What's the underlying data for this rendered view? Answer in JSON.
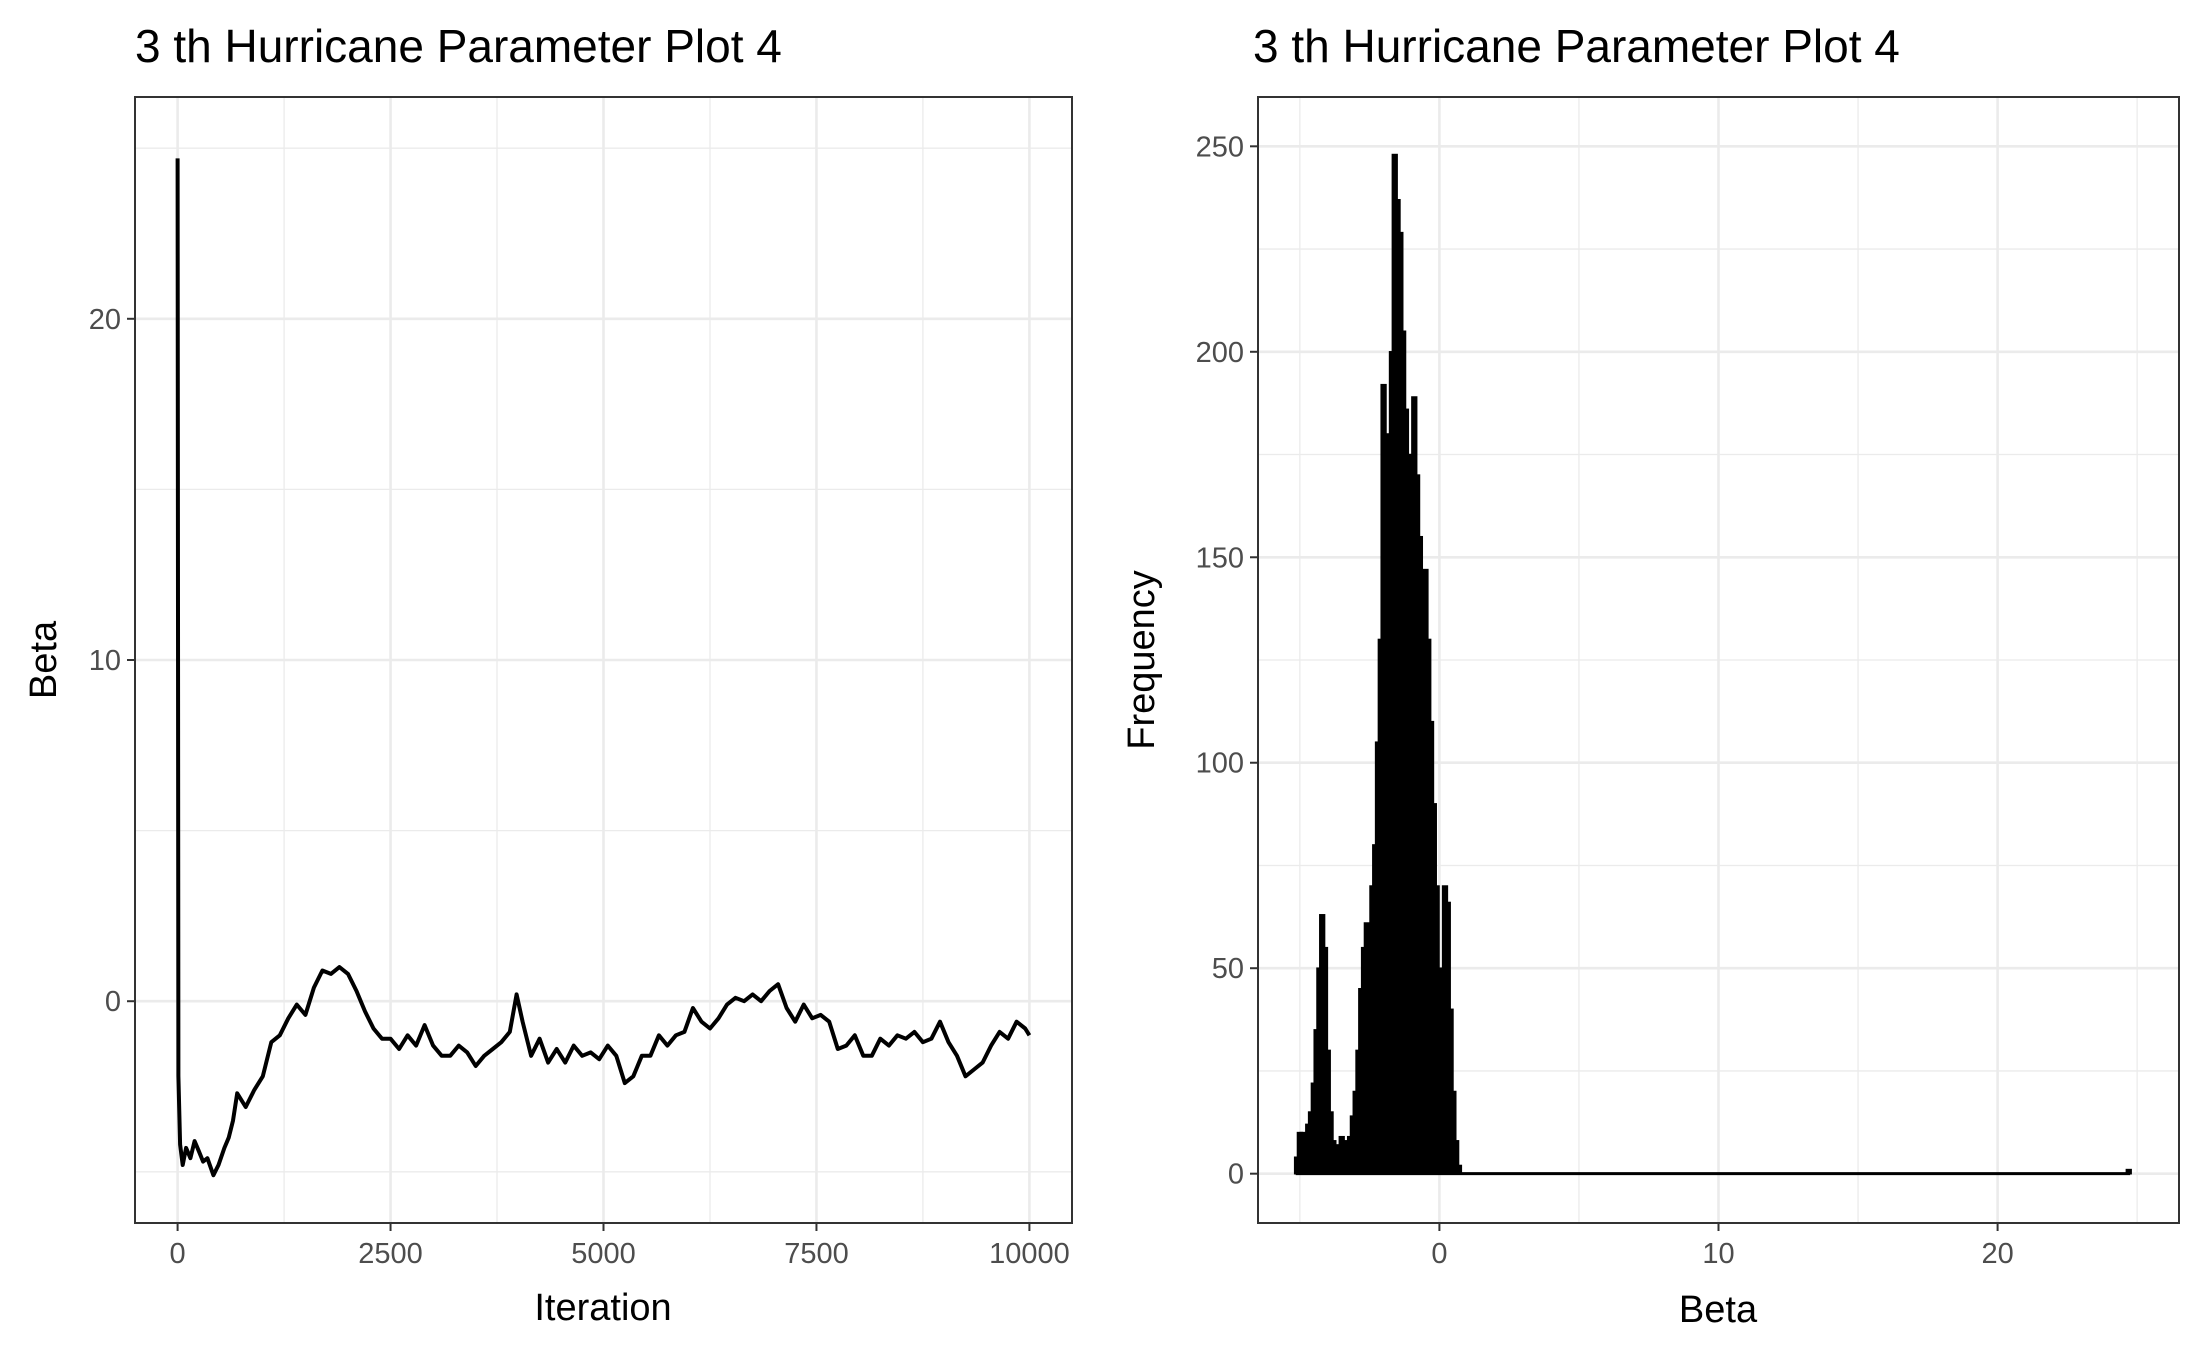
{
  "chart_data": [
    {
      "type": "line",
      "title": "3 th Hurricane Parameter Plot 4",
      "xlabel": "Iteration",
      "ylabel": "Beta",
      "xlim": [
        -500,
        10500
      ],
      "ylim": [
        -6.5,
        26.5
      ],
      "x_ticks": [
        {
          "value": 0,
          "label": "0"
        },
        {
          "value": 2500,
          "label": "2500"
        },
        {
          "value": 5000,
          "label": "5000"
        },
        {
          "value": 7500,
          "label": "7500"
        },
        {
          "value": 10000,
          "label": "10000"
        }
      ],
      "y_ticks": [
        {
          "value": 0,
          "label": "0"
        },
        {
          "value": 10,
          "label": "10"
        },
        {
          "value": 20,
          "label": "20"
        }
      ],
      "grid": true,
      "series": [
        {
          "x": [
            0,
            10,
            30,
            60,
            100,
            150,
            200,
            250,
            300,
            350,
            420,
            480,
            550,
            600,
            650,
            700,
            800,
            900,
            1000,
            1100,
            1200,
            1300,
            1400,
            1500,
            1600,
            1700,
            1800,
            1900,
            2000,
            2100,
            2200,
            2300,
            2400,
            2500,
            2600,
            2700,
            2800,
            2900,
            3000,
            3100,
            3200,
            3300,
            3400,
            3500,
            3600,
            3700,
            3800,
            3900,
            3980,
            4050,
            4150,
            4250,
            4350,
            4450,
            4550,
            4650,
            4750,
            4850,
            4950,
            5050,
            5150,
            5250,
            5350,
            5450,
            5550,
            5650,
            5750,
            5850,
            5950,
            6050,
            6150,
            6250,
            6350,
            6450,
            6550,
            6650,
            6750,
            6850,
            6950,
            7050,
            7150,
            7250,
            7350,
            7450,
            7550,
            7650,
            7750,
            7850,
            7950,
            8050,
            8150,
            8250,
            8350,
            8450,
            8550,
            8650,
            8750,
            8850,
            8950,
            9050,
            9150,
            9250,
            9350,
            9450,
            9550,
            9650,
            9750,
            9850,
            9950,
            10000
          ],
          "y": [
            24.7,
            -2.2,
            -4.2,
            -4.8,
            -4.3,
            -4.6,
            -4.1,
            -4.4,
            -4.7,
            -4.6,
            -5.1,
            -4.8,
            -4.3,
            -4.0,
            -3.5,
            -2.7,
            -3.1,
            -2.6,
            -2.2,
            -1.2,
            -1.0,
            -0.5,
            -0.1,
            -0.4,
            0.4,
            0.9,
            0.8,
            1.0,
            0.8,
            0.3,
            -0.3,
            -0.8,
            -1.1,
            -1.1,
            -1.4,
            -1.0,
            -1.3,
            -0.7,
            -1.3,
            -1.6,
            -1.6,
            -1.3,
            -1.5,
            -1.9,
            -1.6,
            -1.4,
            -1.2,
            -0.9,
            0.2,
            -0.6,
            -1.6,
            -1.1,
            -1.8,
            -1.4,
            -1.8,
            -1.3,
            -1.6,
            -1.5,
            -1.7,
            -1.3,
            -1.6,
            -2.4,
            -2.2,
            -1.6,
            -1.6,
            -1.0,
            -1.3,
            -1.0,
            -0.9,
            -0.2,
            -0.6,
            -0.8,
            -0.5,
            -0.1,
            0.1,
            0.0,
            0.2,
            0.0,
            0.3,
            0.5,
            -0.2,
            -0.6,
            -0.1,
            -0.5,
            -0.4,
            -0.6,
            -1.4,
            -1.3,
            -1.0,
            -1.6,
            -1.6,
            -1.1,
            -1.3,
            -1.0,
            -1.1,
            -0.9,
            -1.2,
            -1.1,
            -0.6,
            -1.2,
            -1.6,
            -2.2,
            -2.0,
            -1.8,
            -1.3,
            -0.9,
            -1.1,
            -0.6,
            -0.8,
            -1.0
          ]
        }
      ]
    },
    {
      "type": "bar",
      "title": "3 th Hurricane Parameter Plot 4",
      "xlabel": "Beta",
      "ylabel": "Frequency",
      "xlim": [
        -6.5,
        26.5
      ],
      "ylim": [
        -12,
        262
      ],
      "x_ticks": [
        {
          "value": 0,
          "label": "0"
        },
        {
          "value": 10,
          "label": "10"
        },
        {
          "value": 20,
          "label": "20"
        }
      ],
      "y_ticks": [
        {
          "value": 0,
          "label": "0"
        },
        {
          "value": 50,
          "label": "50"
        },
        {
          "value": 100,
          "label": "100"
        },
        {
          "value": 150,
          "label": "150"
        },
        {
          "value": 200,
          "label": "200"
        },
        {
          "value": 250,
          "label": "250"
        }
      ],
      "grid": true,
      "bins": [
        {
          "x": -5.1,
          "y": 4
        },
        {
          "x": -5.0,
          "y": 10
        },
        {
          "x": -4.9,
          "y": 10
        },
        {
          "x": -4.8,
          "y": 9
        },
        {
          "x": -4.7,
          "y": 12
        },
        {
          "x": -4.6,
          "y": 15
        },
        {
          "x": -4.5,
          "y": 22
        },
        {
          "x": -4.4,
          "y": 35
        },
        {
          "x": -4.3,
          "y": 50
        },
        {
          "x": -4.2,
          "y": 63
        },
        {
          "x": -4.1,
          "y": 55
        },
        {
          "x": -4.0,
          "y": 30
        },
        {
          "x": -3.9,
          "y": 15
        },
        {
          "x": -3.8,
          "y": 8
        },
        {
          "x": -3.7,
          "y": 5
        },
        {
          "x": -3.6,
          "y": 7
        },
        {
          "x": -3.5,
          "y": 9
        },
        {
          "x": -3.4,
          "y": 8
        },
        {
          "x": -3.3,
          "y": 7
        },
        {
          "x": -3.2,
          "y": 9
        },
        {
          "x": -3.1,
          "y": 14
        },
        {
          "x": -3.0,
          "y": 20
        },
        {
          "x": -2.9,
          "y": 30
        },
        {
          "x": -2.8,
          "y": 45
        },
        {
          "x": -2.7,
          "y": 55
        },
        {
          "x": -2.6,
          "y": 61
        },
        {
          "x": -2.5,
          "y": 55
        },
        {
          "x": -2.4,
          "y": 70
        },
        {
          "x": -2.3,
          "y": 80
        },
        {
          "x": -2.2,
          "y": 105
        },
        {
          "x": -2.1,
          "y": 130
        },
        {
          "x": -2.0,
          "y": 192
        },
        {
          "x": -1.9,
          "y": 180
        },
        {
          "x": -1.8,
          "y": 150
        },
        {
          "x": -1.7,
          "y": 200
        },
        {
          "x": -1.6,
          "y": 248
        },
        {
          "x": -1.5,
          "y": 237
        },
        {
          "x": -1.4,
          "y": 229
        },
        {
          "x": -1.3,
          "y": 205
        },
        {
          "x": -1.2,
          "y": 186
        },
        {
          "x": -1.1,
          "y": 175
        },
        {
          "x": -1.0,
          "y": 160
        },
        {
          "x": -0.9,
          "y": 189
        },
        {
          "x": -0.8,
          "y": 170
        },
        {
          "x": -0.7,
          "y": 155
        },
        {
          "x": -0.6,
          "y": 142
        },
        {
          "x": -0.5,
          "y": 147
        },
        {
          "x": -0.4,
          "y": 130
        },
        {
          "x": -0.3,
          "y": 110
        },
        {
          "x": -0.2,
          "y": 90
        },
        {
          "x": -0.1,
          "y": 70
        },
        {
          "x": 0.0,
          "y": 50
        },
        {
          "x": 0.1,
          "y": 45
        },
        {
          "x": 0.2,
          "y": 70
        },
        {
          "x": 0.3,
          "y": 66
        },
        {
          "x": 0.4,
          "y": 40
        },
        {
          "x": 0.5,
          "y": 20
        },
        {
          "x": 0.6,
          "y": 8
        },
        {
          "x": 0.7,
          "y": 2
        },
        {
          "x": 24.7,
          "y": 1
        }
      ]
    }
  ]
}
